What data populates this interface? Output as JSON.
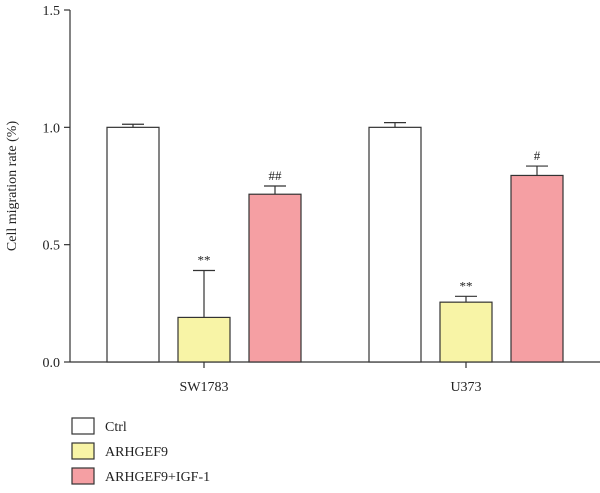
{
  "chart_data": {
    "type": "bar",
    "title": "",
    "xlabel": "",
    "ylabel": "Cell migration rate (%)",
    "ylim": [
      0,
      1.5
    ],
    "yticks": [
      "0.0",
      "0.5",
      "1.0",
      "1.5"
    ],
    "categories": [
      "SW1783",
      "U373"
    ],
    "series": [
      {
        "name": "Ctrl",
        "color": "#ffffff",
        "values": [
          1.0,
          1.0
        ],
        "errors": [
          0.013,
          0.02
        ],
        "annotations": [
          "",
          ""
        ]
      },
      {
        "name": "ARHGEF9",
        "color": "#f8f4a6",
        "values": [
          0.19,
          0.255
        ],
        "errors": [
          0.2,
          0.025
        ],
        "annotations": [
          "**",
          "**"
        ]
      },
      {
        "name": "ARHGEF9+IGF-1",
        "color": "#f59fa3",
        "values": [
          0.715,
          0.795
        ],
        "errors": [
          0.035,
          0.04
        ],
        "annotations": [
          "##",
          "#"
        ]
      }
    ],
    "legend_position": "bottom-left",
    "grid": false
  }
}
